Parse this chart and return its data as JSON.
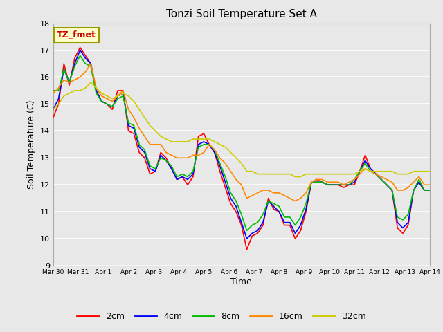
{
  "title": "Tonzi Soil Temperature Set A",
  "xlabel": "Time",
  "ylabel": "Soil Temperature (C)",
  "ylim": [
    9.0,
    18.0
  ],
  "yticks": [
    9.0,
    10.0,
    11.0,
    12.0,
    13.0,
    14.0,
    15.0,
    16.0,
    17.0,
    18.0
  ],
  "x_tick_labels": [
    "Mar 30",
    "Mar 31",
    "Apr 1",
    "Apr 2",
    "Apr 3",
    "Apr 4",
    "Apr 5",
    "Apr 6",
    "Apr 7",
    "Apr 8",
    "Apr 9",
    "Apr 10",
    "Apr 11",
    "Apr 12",
    "Apr 13",
    "Apr 14"
  ],
  "colors": {
    "2cm": "#ff0000",
    "4cm": "#0000ff",
    "8cm": "#00bb00",
    "16cm": "#ff8800",
    "32cm": "#cccc00"
  },
  "legend_label": "TZ_fmet",
  "legend_box_color": "#ffffcc",
  "legend_box_edge": "#999900",
  "fig_bg_color": "#e8e8e8",
  "plot_bg_color": "#e8e8e8",
  "grid_color": "#ffffff",
  "series_2cm": [
    14.5,
    15.0,
    16.5,
    15.7,
    16.7,
    17.1,
    16.8,
    16.5,
    15.5,
    15.1,
    15.0,
    14.8,
    15.5,
    15.5,
    14.0,
    13.9,
    13.2,
    13.0,
    12.4,
    12.5,
    13.2,
    13.0,
    12.6,
    12.2,
    12.3,
    12.0,
    12.3,
    13.8,
    13.9,
    13.5,
    13.2,
    12.5,
    11.9,
    11.3,
    11.0,
    10.5,
    9.6,
    10.1,
    10.2,
    10.5,
    11.5,
    11.1,
    11.0,
    10.5,
    10.5,
    10.0,
    10.3,
    11.0,
    12.1,
    12.2,
    12.1,
    12.0,
    12.0,
    12.0,
    11.9,
    12.0,
    12.0,
    12.5,
    13.1,
    12.6,
    12.4,
    12.2,
    12.0,
    11.8,
    10.4,
    10.2,
    10.5,
    11.8,
    12.1,
    11.8,
    11.8
  ],
  "series_4cm": [
    14.8,
    15.2,
    16.3,
    15.8,
    16.5,
    17.0,
    16.7,
    16.5,
    15.5,
    15.1,
    15.0,
    14.9,
    15.3,
    15.4,
    14.2,
    14.1,
    13.4,
    13.2,
    12.6,
    12.5,
    13.1,
    12.9,
    12.6,
    12.2,
    12.3,
    12.2,
    12.4,
    13.5,
    13.6,
    13.5,
    13.2,
    12.7,
    12.1,
    11.5,
    11.2,
    10.6,
    10.0,
    10.2,
    10.3,
    10.6,
    11.4,
    11.2,
    11.0,
    10.6,
    10.6,
    10.2,
    10.5,
    11.1,
    12.1,
    12.1,
    12.1,
    12.0,
    12.0,
    12.0,
    12.0,
    12.0,
    12.1,
    12.5,
    12.9,
    12.6,
    12.4,
    12.2,
    12.0,
    11.8,
    10.6,
    10.4,
    10.6,
    11.8,
    12.1,
    11.8,
    11.8
  ],
  "series_8cm": [
    15.5,
    15.5,
    16.3,
    15.8,
    16.4,
    16.8,
    16.5,
    16.4,
    15.4,
    15.1,
    15.0,
    14.9,
    15.2,
    15.3,
    14.3,
    14.2,
    13.5,
    13.3,
    12.7,
    12.6,
    13.0,
    12.9,
    12.7,
    12.3,
    12.4,
    12.3,
    12.5,
    13.4,
    13.5,
    13.5,
    13.3,
    12.8,
    12.3,
    11.7,
    11.4,
    10.9,
    10.3,
    10.5,
    10.6,
    10.9,
    11.4,
    11.3,
    11.2,
    10.8,
    10.8,
    10.5,
    10.8,
    11.3,
    12.1,
    12.1,
    12.1,
    12.0,
    12.0,
    12.0,
    12.0,
    12.0,
    12.2,
    12.5,
    12.8,
    12.5,
    12.4,
    12.2,
    12.0,
    11.8,
    10.8,
    10.7,
    10.9,
    11.8,
    12.2,
    11.8,
    11.8
  ],
  "series_16cm": [
    15.4,
    15.6,
    15.9,
    15.8,
    15.9,
    16.0,
    16.2,
    16.5,
    15.6,
    15.3,
    15.2,
    15.1,
    15.3,
    15.5,
    14.8,
    14.5,
    14.1,
    13.8,
    13.5,
    13.5,
    13.5,
    13.2,
    13.1,
    13.0,
    13.0,
    13.0,
    13.1,
    13.1,
    13.2,
    13.5,
    13.3,
    13.0,
    12.8,
    12.5,
    12.2,
    12.0,
    11.5,
    11.6,
    11.7,
    11.8,
    11.8,
    11.7,
    11.7,
    11.6,
    11.5,
    11.4,
    11.5,
    11.7,
    12.1,
    12.2,
    12.2,
    12.1,
    12.1,
    12.1,
    12.0,
    12.1,
    12.2,
    12.4,
    12.6,
    12.5,
    12.4,
    12.3,
    12.2,
    12.1,
    11.8,
    11.8,
    11.9,
    12.1,
    12.3,
    12.0,
    12.0
  ],
  "series_32cm": [
    14.8,
    15.0,
    15.3,
    15.4,
    15.5,
    15.5,
    15.6,
    15.8,
    15.6,
    15.4,
    15.3,
    15.2,
    15.3,
    15.4,
    15.3,
    15.1,
    14.8,
    14.5,
    14.2,
    14.0,
    13.8,
    13.7,
    13.6,
    13.6,
    13.6,
    13.6,
    13.7,
    13.7,
    13.7,
    13.7,
    13.6,
    13.5,
    13.4,
    13.2,
    13.0,
    12.8,
    12.5,
    12.5,
    12.4,
    12.4,
    12.4,
    12.4,
    12.4,
    12.4,
    12.4,
    12.3,
    12.3,
    12.4,
    12.4,
    12.4,
    12.4,
    12.4,
    12.4,
    12.4,
    12.4,
    12.4,
    12.4,
    12.5,
    12.6,
    12.5,
    12.5,
    12.5,
    12.5,
    12.5,
    12.4,
    12.4,
    12.4,
    12.5,
    12.5,
    12.5,
    12.5
  ]
}
